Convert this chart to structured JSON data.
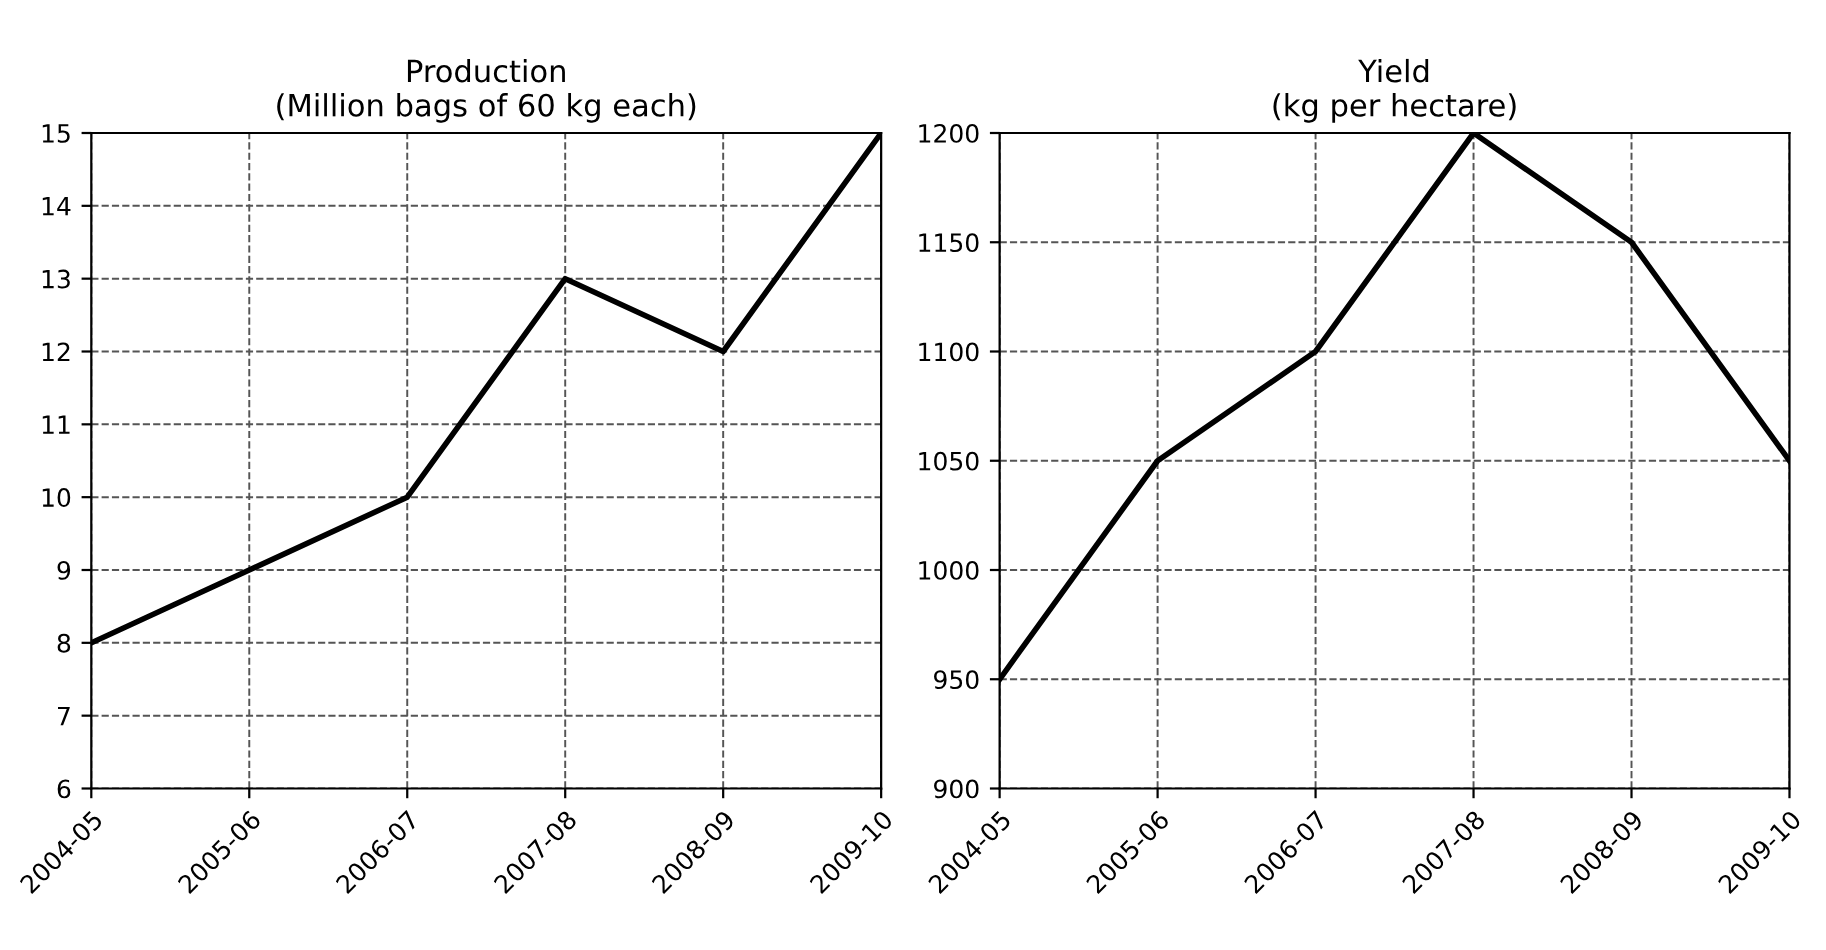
{
  "chart_data": [
    {
      "type": "line",
      "title": "Production\n(Million bags of 60 kg each)",
      "categories": [
        "2004-05",
        "2005-06",
        "2006-07",
        "2007-08",
        "2008-09",
        "2009-10"
      ],
      "series": [
        {
          "color": "#000000",
          "values": [
            8,
            9,
            10,
            13,
            12,
            15
          ]
        }
      ],
      "ylim": [
        6,
        15
      ],
      "yticks": [
        6,
        7,
        8,
        9,
        10,
        11,
        12,
        13,
        14,
        15
      ],
      "grid": true,
      "line_style": "solid"
    },
    {
      "type": "line",
      "title": "Yield\n(kg per hectare)",
      "categories": [
        "2004-05",
        "2005-06",
        "2006-07",
        "2007-08",
        "2008-09",
        "2009-10"
      ],
      "series": [
        {
          "color": "#000000",
          "values": [
            950,
            1050,
            1100,
            1200,
            1150,
            1050
          ]
        }
      ],
      "ylim": [
        900,
        1200
      ],
      "yticks": [
        900,
        950,
        1000,
        1050,
        1100,
        1150,
        1200
      ],
      "grid": true,
      "line_style": "solid"
    }
  ]
}
